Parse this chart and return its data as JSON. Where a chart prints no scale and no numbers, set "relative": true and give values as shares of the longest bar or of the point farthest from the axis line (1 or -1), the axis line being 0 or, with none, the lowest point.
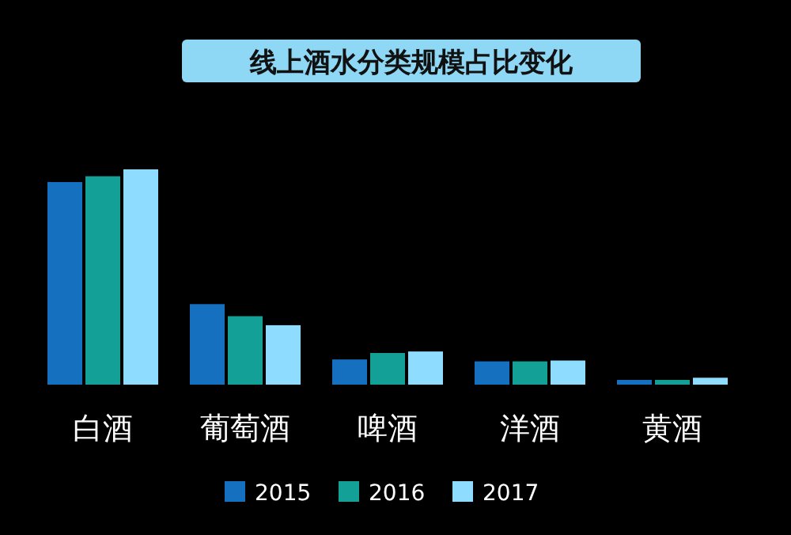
{
  "chart_data": {
    "type": "bar",
    "title": "线上酒水分类规模占比变化",
    "relative": true,
    "legend": "bottom",
    "categories": [
      "白酒",
      "葡萄酒",
      "啤酒",
      "洋酒",
      "黄酒"
    ],
    "series": [
      {
        "name": "2015",
        "color": "#1570c0",
        "values": [
          0.941,
          0.374,
          0.117,
          0.108,
          0.022
        ]
      },
      {
        "name": "2016",
        "color": "#13a096",
        "values": [
          0.968,
          0.318,
          0.147,
          0.108,
          0.022
        ]
      },
      {
        "name": "2017",
        "color": "#8edcff",
        "values": [
          1,
          0.276,
          0.154,
          0.112,
          0.032
        ]
      }
    ]
  }
}
